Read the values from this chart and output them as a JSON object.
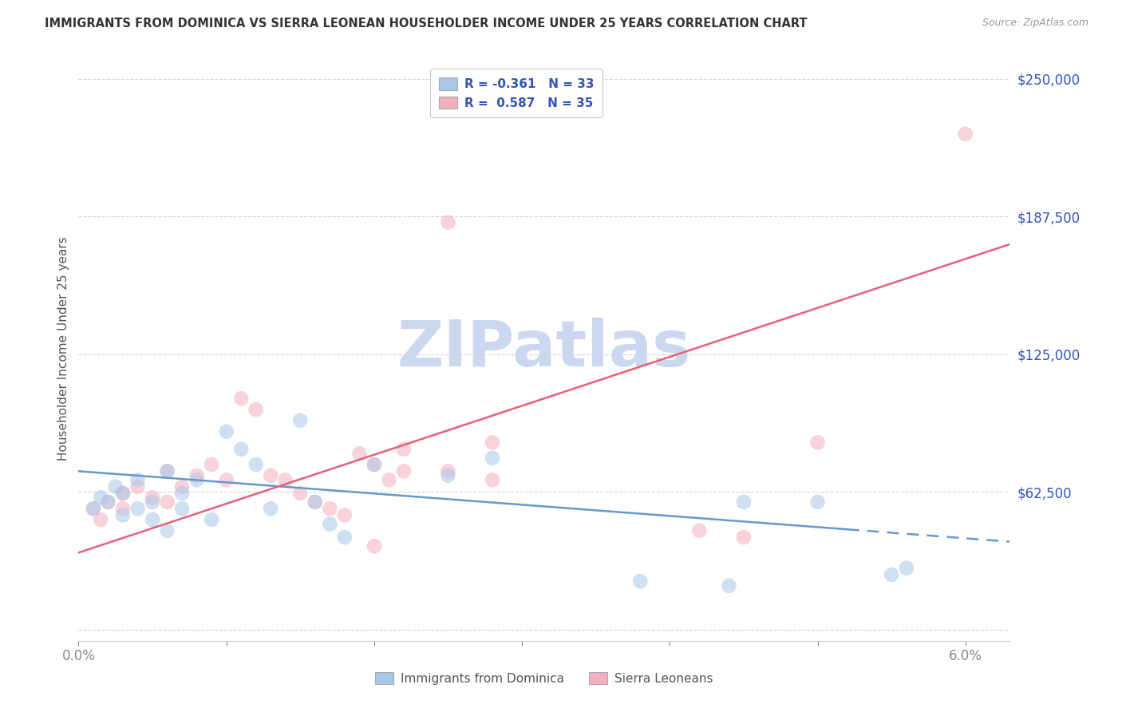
{
  "title": "IMMIGRANTS FROM DOMINICA VS SIERRA LEONEAN HOUSEHOLDER INCOME UNDER 25 YEARS CORRELATION CHART",
  "source": "Source: ZipAtlas.com",
  "ylabel": "Householder Income Under 25 years",
  "xlim": [
    0.0,
    0.063
  ],
  "ylim": [
    -5000,
    260000
  ],
  "yticks": [
    0,
    62500,
    125000,
    187500,
    250000
  ],
  "ytick_labels": [
    "",
    "$62,500",
    "$125,000",
    "$187,500",
    "$250,000"
  ],
  "xtick_labels": [
    "0.0%",
    "",
    "",
    "",
    "",
    "",
    "6.0%"
  ],
  "legend_label1": "Immigrants from Dominica",
  "legend_label2": "Sierra Leoneans",
  "R1": -0.361,
  "N1": 33,
  "R2": 0.587,
  "N2": 35,
  "color1": "#a8c8e8",
  "color2": "#f5afc0",
  "trendline_color1": "#6699cc",
  "trendline_color2": "#e8607a",
  "axis_label_color": "#3355bb",
  "watermark_text": "ZIPatlas",
  "watermark_color": "#ccd8f0",
  "background_color": "#ffffff",
  "dot_size": 180,
  "dot_alpha": 0.55,
  "dominica_x": [
    0.001,
    0.0015,
    0.002,
    0.0025,
    0.003,
    0.003,
    0.004,
    0.004,
    0.005,
    0.005,
    0.006,
    0.006,
    0.007,
    0.007,
    0.008,
    0.009,
    0.01,
    0.011,
    0.012,
    0.013,
    0.015,
    0.016,
    0.017,
    0.018,
    0.02,
    0.025,
    0.028,
    0.045,
    0.05,
    0.038,
    0.055,
    0.056,
    0.044
  ],
  "dominica_y": [
    55000,
    60000,
    58000,
    65000,
    62000,
    52000,
    68000,
    55000,
    58000,
    50000,
    72000,
    45000,
    62000,
    55000,
    68000,
    50000,
    90000,
    82000,
    75000,
    55000,
    95000,
    58000,
    48000,
    42000,
    75000,
    70000,
    78000,
    58000,
    58000,
    22000,
    25000,
    28000,
    20000
  ],
  "sierraleone_x": [
    0.001,
    0.0015,
    0.002,
    0.003,
    0.003,
    0.004,
    0.005,
    0.006,
    0.006,
    0.007,
    0.008,
    0.009,
    0.01,
    0.011,
    0.012,
    0.013,
    0.014,
    0.015,
    0.016,
    0.017,
    0.018,
    0.019,
    0.02,
    0.021,
    0.022,
    0.022,
    0.025,
    0.028,
    0.025,
    0.028,
    0.042,
    0.045,
    0.05,
    0.02,
    0.06
  ],
  "sierraleone_y": [
    55000,
    50000,
    58000,
    62000,
    55000,
    65000,
    60000,
    72000,
    58000,
    65000,
    70000,
    75000,
    68000,
    105000,
    100000,
    70000,
    68000,
    62000,
    58000,
    55000,
    52000,
    80000,
    75000,
    68000,
    82000,
    72000,
    185000,
    68000,
    72000,
    85000,
    45000,
    42000,
    85000,
    38000,
    225000
  ],
  "trendline1_x0": 0.0,
  "trendline1_x1": 0.063,
  "trendline1_y0": 72000,
  "trendline1_y1": 40000,
  "trendline1_solid_end": 0.052,
  "trendline2_x0": 0.0,
  "trendline2_x1": 0.063,
  "trendline2_y0": 35000,
  "trendline2_y1": 175000
}
